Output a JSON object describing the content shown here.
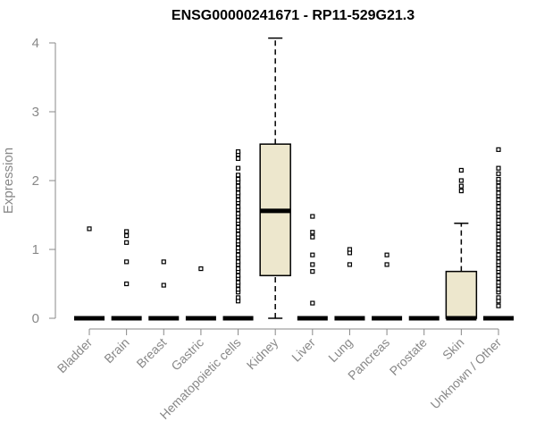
{
  "chart_data": {
    "type": "boxplot",
    "title": "ENSG00000241671 - RP11-529G21.3",
    "xlabel": "",
    "ylabel": "Expression",
    "ylim": [
      0,
      4.1
    ],
    "yticks": [
      0,
      1,
      2,
      3,
      4
    ],
    "grid": false,
    "categories": [
      "Bladder",
      "Brain",
      "Breast",
      "Gastric",
      "Hematopoietic cells",
      "Kidney",
      "Liver",
      "Lung",
      "Pancreas",
      "Prostate",
      "Skin",
      "Unknown / Other"
    ],
    "box_fill": "#ede7cd",
    "boxes": [
      {
        "q1": 0,
        "median": 0,
        "q3": 0,
        "whisker_low": 0,
        "whisker_high": 0,
        "outliers": [
          1.3
        ]
      },
      {
        "q1": 0,
        "median": 0,
        "q3": 0,
        "whisker_low": 0,
        "whisker_high": 0,
        "outliers": [
          0.5,
          0.82,
          1.1,
          1.2,
          1.26
        ]
      },
      {
        "q1": 0,
        "median": 0,
        "q3": 0,
        "whisker_low": 0,
        "whisker_high": 0,
        "outliers": [
          0.48,
          0.82
        ]
      },
      {
        "q1": 0,
        "median": 0,
        "q3": 0,
        "whisker_low": 0,
        "whisker_high": 0,
        "outliers": [
          0.72
        ]
      },
      {
        "q1": 0,
        "median": 0,
        "q3": 0,
        "whisker_low": 0,
        "whisker_high": 0,
        "outliers": [
          0.25,
          0.3,
          0.38,
          0.42,
          0.48,
          0.52,
          0.58,
          0.62,
          0.68,
          0.72,
          0.78,
          0.82,
          0.88,
          0.92,
          0.98,
          1.02,
          1.08,
          1.12,
          1.18,
          1.22,
          1.28,
          1.32,
          1.38,
          1.42,
          1.48,
          1.52,
          1.58,
          1.62,
          1.68,
          1.72,
          1.78,
          1.82,
          1.88,
          1.92,
          1.98,
          2.02,
          2.08,
          2.18,
          2.32,
          2.38,
          2.42
        ]
      },
      {
        "q1": 0.62,
        "median": 1.56,
        "q3": 2.53,
        "whisker_low": 0,
        "whisker_high": 4.07,
        "outliers": []
      },
      {
        "q1": 0,
        "median": 0,
        "q3": 0,
        "whisker_low": 0,
        "whisker_high": 0,
        "outliers": [
          0.22,
          0.68,
          0.78,
          0.92,
          1.18,
          1.25,
          1.48
        ]
      },
      {
        "q1": 0,
        "median": 0,
        "q3": 0,
        "whisker_low": 0,
        "whisker_high": 0,
        "outliers": [
          0.78,
          0.95,
          1.0
        ]
      },
      {
        "q1": 0,
        "median": 0,
        "q3": 0,
        "whisker_low": 0,
        "whisker_high": 0,
        "outliers": [
          0.78,
          0.92
        ]
      },
      {
        "q1": 0,
        "median": 0,
        "q3": 0,
        "whisker_low": 0,
        "whisker_high": 0,
        "outliers": []
      },
      {
        "q1": 0,
        "median": 0,
        "q3": 0.68,
        "whisker_low": 0,
        "whisker_high": 1.38,
        "outliers": [
          1.85,
          1.92,
          2.0,
          2.15
        ]
      },
      {
        "q1": 0,
        "median": 0,
        "q3": 0,
        "whisker_low": 0,
        "whisker_high": 0,
        "outliers": [
          0.18,
          0.25,
          0.3,
          0.38,
          0.42,
          0.48,
          0.52,
          0.58,
          0.62,
          0.68,
          0.72,
          0.78,
          0.82,
          0.88,
          0.92,
          0.98,
          1.02,
          1.08,
          1.12,
          1.18,
          1.22,
          1.28,
          1.32,
          1.38,
          1.42,
          1.48,
          1.52,
          1.58,
          1.62,
          1.68,
          1.72,
          1.78,
          1.82,
          1.88,
          1.92,
          1.98,
          2.02,
          2.1,
          2.18,
          2.45
        ]
      }
    ]
  }
}
